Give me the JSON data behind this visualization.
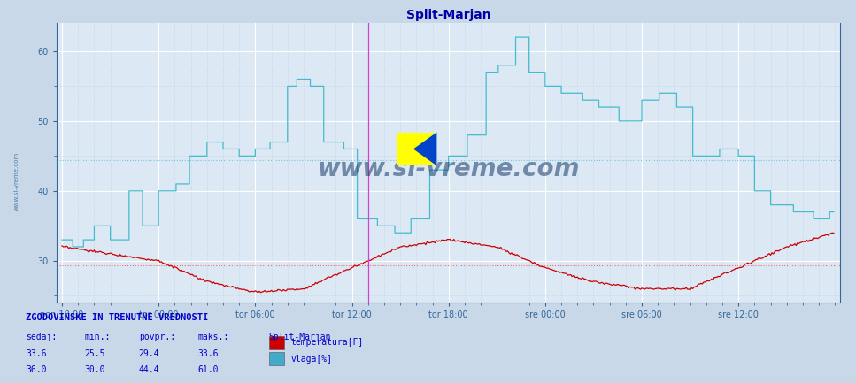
{
  "title": "Split-Marjan",
  "title_color": "#0000aa",
  "bg_color": "#c8d8e8",
  "plot_bg_color": "#dce9f5",
  "grid_color_white": "#ffffff",
  "grid_color_light": "#b8cfe0",
  "ylabel_color": "#336699",
  "xlabels": [
    "pon 18:00",
    "tor 00:00",
    "tor 06:00",
    "tor 12:00",
    "tor 18:00",
    "sre 00:00",
    "sre 06:00",
    "sre 12:00"
  ],
  "ylim_lo": 24,
  "ylim_hi": 64,
  "yticks": [
    30,
    40,
    50,
    60
  ],
  "temp_color": "#cc0000",
  "humidity_color": "#44bbcc",
  "temp_avg_line": 29.4,
  "humidity_avg_line": 44.4,
  "vline_color": "#cc44cc",
  "watermark": "www.si-vreme.com",
  "watermark_color": "#1a3a6a",
  "footer_title": "ZGODOVINSKE IN TRENUTNE VREDNOSTI",
  "footer_color": "#0000cc",
  "col_headers": [
    "sedaj:",
    "min.:",
    "povpr.:",
    "maks.:",
    "Split-Marjan"
  ],
  "legend_items": [
    "temperatura[F]",
    "vlaga[%]"
  ],
  "legend_colors": [
    "#cc0000",
    "#44aacc"
  ],
  "stats_temp": [
    33.6,
    25.5,
    29.4,
    33.6
  ],
  "stats_hum": [
    36.0,
    30.0,
    44.4,
    61.0
  ],
  "figsize": [
    9.47,
    4.24
  ],
  "dpi": 100
}
